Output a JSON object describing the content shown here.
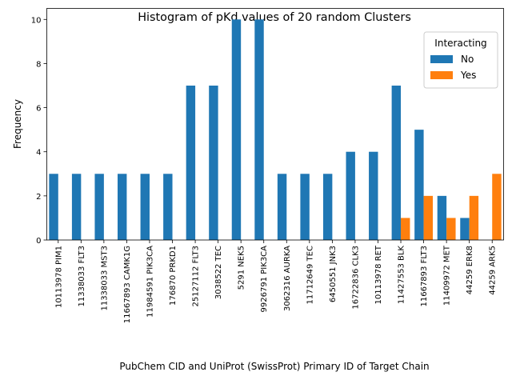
{
  "chart_data": {
    "type": "bar",
    "title": "Histogram of pKd values of 20 random Clusters",
    "xlabel": "PubChem CID and UniProt (SwissProt) Primary ID of Target Chain",
    "ylabel": "Frequency",
    "ylim": [
      0,
      10.5
    ],
    "yticks": [
      0,
      2,
      4,
      6,
      8,
      10
    ],
    "grid": false,
    "legend": {
      "title": "Interacting",
      "placement": "top-right"
    },
    "categories": [
      "10113978 PIM1",
      "11338033 FLT3",
      "11338033 MST3",
      "11667893 CAMK1G",
      "11984591 PIK3CA",
      "176870 PRKD1",
      "25127112 FLT3",
      "3038522 TEC",
      "5291 NEK5",
      "9926791 PIK3CA",
      "3062316 AURKA",
      "11712649 TEC",
      "6450551 JNK3",
      "16722836 CLK3",
      "10113978 RET",
      "11427553 BLK",
      "11667893 FLT3",
      "11409972 MET",
      "44259 ERK8",
      "44259 ARK5"
    ],
    "series": [
      {
        "name": "No",
        "color": "#1f77b4",
        "values": [
          3,
          3,
          3,
          3,
          3,
          3,
          7,
          7,
          10,
          10,
          3,
          3,
          3,
          4,
          4,
          7,
          5,
          2,
          1,
          0
        ]
      },
      {
        "name": "Yes",
        "color": "#ff7f0e",
        "values": [
          0,
          0,
          0,
          0,
          0,
          0,
          0,
          0,
          0,
          0,
          0,
          0,
          0,
          0,
          0,
          1,
          2,
          1,
          2,
          3
        ]
      }
    ]
  }
}
